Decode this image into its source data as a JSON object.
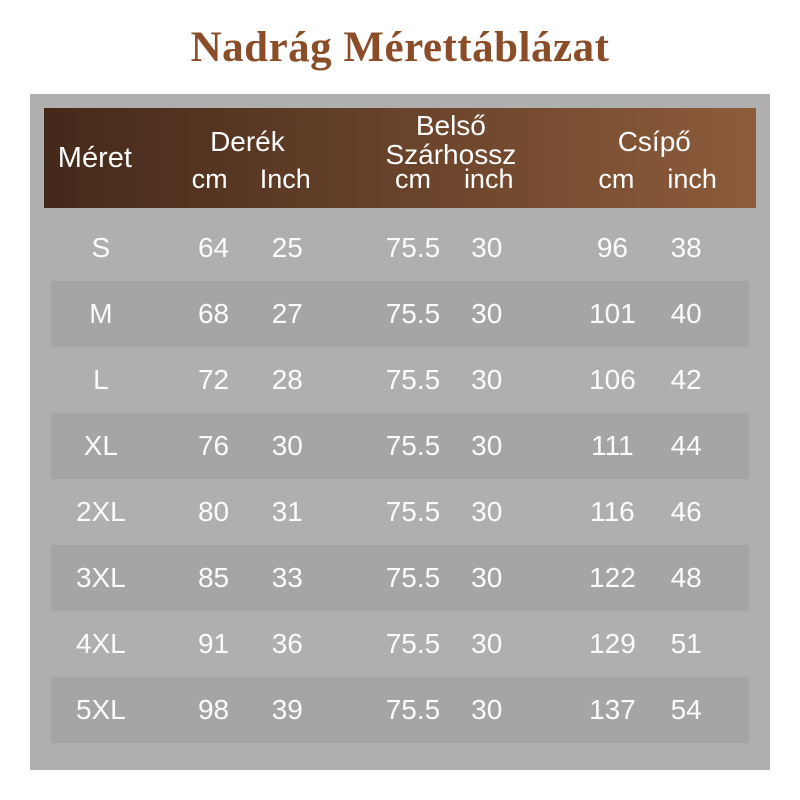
{
  "title": "Nadrág Mérettáblázat",
  "colors": {
    "title_brown": "#8b4d27",
    "header_gradient_start": "#44291a",
    "header_gradient_end": "#8d5c3b",
    "panel_gray": "#afafaf",
    "stripe_gray": "#a5a5a5",
    "header_text": "#fdfdfd",
    "row_text": "#fbfbfb"
  },
  "table": {
    "size_column_header": "Méret",
    "groups": [
      {
        "name": "Derék",
        "unit_cm": "cm",
        "unit_inch": "Inch"
      },
      {
        "name_line1": "Belső",
        "name_line2": "Szárhossz",
        "unit_cm": "cm",
        "unit_inch": "inch"
      },
      {
        "name": "Csípő",
        "unit_cm": "cm",
        "unit_inch": "inch"
      }
    ]
  },
  "chart_data": {
    "type": "table",
    "title": "Nadrág Mérettáblázat",
    "columns": [
      "Méret",
      "Derék cm",
      "Derék Inch",
      "Belső Szárhossz cm",
      "Belső Szárhossz inch",
      "Csípő cm",
      "Csípő inch"
    ],
    "rows": [
      [
        "S",
        "64",
        "25",
        "75.5",
        "30",
        "96",
        "38"
      ],
      [
        "M",
        "68",
        "27",
        "75.5",
        "30",
        "101",
        "40"
      ],
      [
        "L",
        "72",
        "28",
        "75.5",
        "30",
        "106",
        "42"
      ],
      [
        "XL",
        "76",
        "30",
        "75.5",
        "30",
        "111",
        "44"
      ],
      [
        "2XL",
        "80",
        "31",
        "75.5",
        "30",
        "116",
        "46"
      ],
      [
        "3XL",
        "85",
        "33",
        "75.5",
        "30",
        "122",
        "48"
      ],
      [
        "4XL",
        "91",
        "36",
        "75.5",
        "30",
        "129",
        "51"
      ],
      [
        "5XL",
        "98",
        "39",
        "75.5",
        "30",
        "137",
        "54"
      ]
    ]
  }
}
